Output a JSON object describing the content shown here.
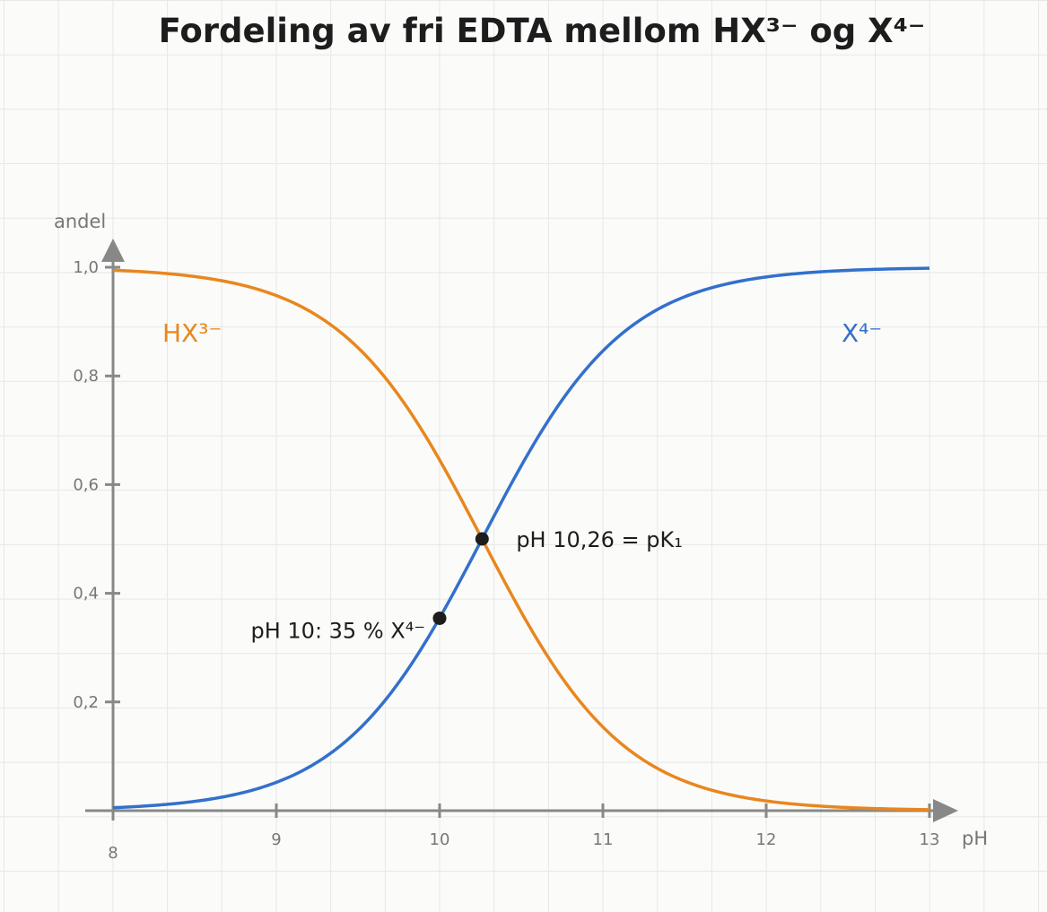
{
  "chart_data": {
    "type": "line",
    "title": "Fordeling av fri EDTA mellom HX³⁻ og X⁴⁻",
    "xlabel": "pH",
    "ylabel": "andel",
    "xlim": [
      8,
      13
    ],
    "ylim": [
      0,
      1
    ],
    "x_ticks": [
      8,
      9,
      10,
      11,
      12,
      13
    ],
    "x_tick_labels": [
      "8",
      "9",
      "10",
      "11",
      "12",
      "13"
    ],
    "y_ticks": [
      0.2,
      0.4,
      0.6,
      0.8,
      1.0
    ],
    "y_tick_labels": [
      "0,2",
      "0,4",
      "0,6",
      "0,8",
      "1,0"
    ],
    "grid": true,
    "pKa": 10.26,
    "series": [
      {
        "name": "HX³⁻",
        "color": "#e8871e",
        "x": [
          8,
          8.5,
          9,
          9.25,
          9.5,
          9.75,
          10,
          10.26,
          10.5,
          10.75,
          11,
          11.5,
          12,
          12.5,
          13
        ],
        "values": [
          0.995,
          0.983,
          0.948,
          0.911,
          0.852,
          0.764,
          0.646,
          0.5,
          0.365,
          0.244,
          0.154,
          0.054,
          0.018,
          0.006,
          0.002
        ]
      },
      {
        "name": "X⁴⁻",
        "color": "#3370cc",
        "x": [
          8,
          8.5,
          9,
          9.25,
          9.5,
          9.75,
          10,
          10.26,
          10.5,
          10.75,
          11,
          11.5,
          12,
          12.5,
          13
        ],
        "values": [
          0.005,
          0.017,
          0.052,
          0.089,
          0.148,
          0.236,
          0.354,
          0.5,
          0.635,
          0.756,
          0.846,
          0.946,
          0.982,
          0.994,
          0.998
        ]
      }
    ],
    "annotations": [
      {
        "text": "pH 10,26 = pK₁",
        "x": 10.26,
        "y": 0.5
      },
      {
        "text": "pH 10: 35 % X⁴⁻",
        "x": 10,
        "y": 0.354
      }
    ]
  }
}
